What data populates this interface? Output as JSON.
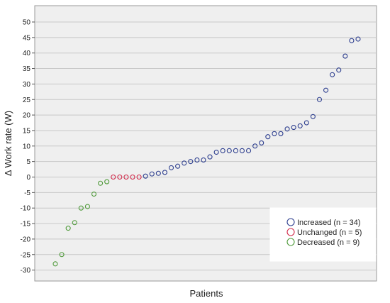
{
  "chart_data": {
    "type": "scatter",
    "xlabel": "Patients",
    "ylabel": "Δ Work rate (W)",
    "ylim": [
      -35,
      52
    ],
    "yticks": [
      50,
      45,
      40,
      35,
      30,
      25,
      20,
      15,
      10,
      5,
      0,
      -5,
      -10,
      -15,
      -20,
      -25,
      -30
    ],
    "grid": "horizontal",
    "legend_position": "bottom-right",
    "series": [
      {
        "name": "Decreased (n = 9)",
        "color": "#4f9a3a",
        "x": [
          1,
          2,
          3,
          4,
          5,
          6,
          7,
          8,
          9
        ],
        "values": [
          -28,
          -25,
          -16.5,
          -14.7,
          -10,
          -9.5,
          -5.5,
          -2,
          -1.5
        ]
      },
      {
        "name": "Unchanged (n = 5)",
        "color": "#d12a4a",
        "x": [
          10,
          11,
          12,
          13,
          14
        ],
        "values": [
          0,
          0,
          0,
          0,
          0
        ]
      },
      {
        "name": "Increased (n = 34)",
        "color": "#2e3f8f",
        "x": [
          15,
          16,
          17,
          18,
          19,
          20,
          21,
          22,
          23,
          24,
          25,
          26,
          27,
          28,
          29,
          30,
          31,
          32,
          33,
          34,
          35,
          36,
          37,
          38,
          39,
          40,
          41,
          42,
          43,
          44,
          45,
          46,
          47,
          48
        ],
        "values": [
          0.3,
          1,
          1.2,
          1.5,
          3,
          3.5,
          4.5,
          5,
          5.5,
          5.5,
          6.5,
          8,
          8.5,
          8.5,
          8.5,
          8.5,
          8.5,
          10,
          11,
          13,
          14,
          14,
          15.5,
          16,
          16.5,
          17.5,
          19.5,
          25,
          28,
          33,
          34.5,
          39,
          44,
          44.5
        ]
      }
    ]
  }
}
